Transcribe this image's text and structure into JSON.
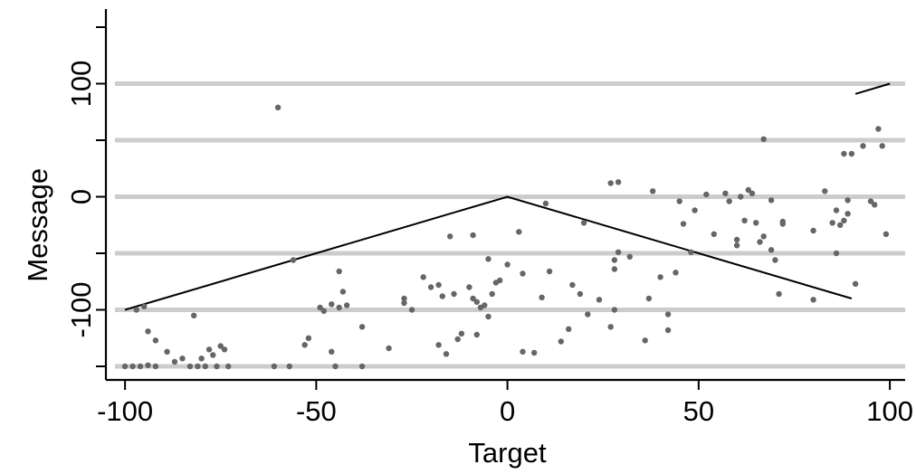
{
  "chart_data": {
    "type": "scatter",
    "title": "",
    "xlabel": "Target",
    "ylabel": "Message",
    "xlim": [
      -105,
      104
    ],
    "ylim": [
      -162,
      166
    ],
    "x_ticks": [
      -100,
      -50,
      0,
      50,
      100
    ],
    "x_tick_labels": [
      "-100",
      "-50",
      "0",
      "50",
      "100"
    ],
    "y_ticks": [
      -100,
      0,
      100
    ],
    "y_tick_labels": [
      "-100",
      "0",
      "100"
    ],
    "y_minor_ticks": [
      -150,
      -50,
      50,
      150
    ],
    "gridlines_y": [
      -150,
      -100,
      -50,
      0,
      50,
      100
    ],
    "grid_color": "#cccccc",
    "point_color": "#666666",
    "line_color": "#000000",
    "lines": [
      {
        "x": [
          -100,
          0,
          90
        ],
        "y": [
          -100,
          0,
          -90
        ]
      },
      {
        "x": [
          91,
          100
        ],
        "y": [
          91,
          100
        ]
      }
    ],
    "points": [
      {
        "x": -100,
        "y": -150
      },
      {
        "x": -98,
        "y": -150
      },
      {
        "x": -96,
        "y": -150
      },
      {
        "x": -94,
        "y": -149
      },
      {
        "x": -92,
        "y": -150
      },
      {
        "x": -97,
        "y": -100
      },
      {
        "x": -95,
        "y": -97
      },
      {
        "x": -94,
        "y": -119
      },
      {
        "x": -92,
        "y": -127
      },
      {
        "x": -89,
        "y": -137
      },
      {
        "x": -87,
        "y": -146
      },
      {
        "x": -85,
        "y": -143
      },
      {
        "x": -83,
        "y": -150
      },
      {
        "x": -82,
        "y": -105
      },
      {
        "x": -81,
        "y": -150
      },
      {
        "x": -80,
        "y": -143
      },
      {
        "x": -78,
        "y": -135
      },
      {
        "x": -77,
        "y": -140
      },
      {
        "x": -76,
        "y": -150
      },
      {
        "x": -75,
        "y": -132
      },
      {
        "x": -74,
        "y": -135
      },
      {
        "x": -73,
        "y": -150
      },
      {
        "x": -79,
        "y": -150
      },
      {
        "x": -61,
        "y": -150
      },
      {
        "x": -60,
        "y": 79
      },
      {
        "x": -57,
        "y": -150
      },
      {
        "x": -56,
        "y": -56
      },
      {
        "x": -53,
        "y": -131
      },
      {
        "x": -52,
        "y": -125
      },
      {
        "x": -49,
        "y": -98
      },
      {
        "x": -48,
        "y": -101
      },
      {
        "x": -46,
        "y": -137
      },
      {
        "x": -46,
        "y": -95
      },
      {
        "x": -45,
        "y": -150
      },
      {
        "x": -44,
        "y": -98
      },
      {
        "x": -44,
        "y": -66
      },
      {
        "x": -43,
        "y": -84
      },
      {
        "x": -42,
        "y": -96
      },
      {
        "x": -38,
        "y": -115
      },
      {
        "x": -38,
        "y": -150
      },
      {
        "x": -31,
        "y": -134
      },
      {
        "x": -27,
        "y": -94
      },
      {
        "x": -27,
        "y": -90
      },
      {
        "x": -25,
        "y": -100
      },
      {
        "x": -22,
        "y": -71
      },
      {
        "x": -20,
        "y": -80
      },
      {
        "x": -18,
        "y": -78
      },
      {
        "x": -18,
        "y": -131
      },
      {
        "x": -17,
        "y": -88
      },
      {
        "x": -16,
        "y": -139
      },
      {
        "x": -15,
        "y": -35
      },
      {
        "x": -14,
        "y": -86
      },
      {
        "x": -13,
        "y": -126
      },
      {
        "x": -12,
        "y": -121
      },
      {
        "x": -10,
        "y": -80
      },
      {
        "x": -9,
        "y": -90
      },
      {
        "x": -9,
        "y": -34
      },
      {
        "x": -8,
        "y": -93
      },
      {
        "x": -7,
        "y": -98
      },
      {
        "x": -6,
        "y": -96
      },
      {
        "x": -5,
        "y": -106
      },
      {
        "x": -5,
        "y": -55
      },
      {
        "x": -4,
        "y": -86
      },
      {
        "x": -3,
        "y": -76
      },
      {
        "x": -2,
        "y": -74
      },
      {
        "x": -8,
        "y": -122
      },
      {
        "x": 0,
        "y": -60
      },
      {
        "x": 3,
        "y": -31
      },
      {
        "x": 4,
        "y": -68
      },
      {
        "x": 4,
        "y": -137
      },
      {
        "x": 7,
        "y": -138
      },
      {
        "x": 9,
        "y": -89
      },
      {
        "x": 10,
        "y": -6
      },
      {
        "x": 11,
        "y": -66
      },
      {
        "x": 14,
        "y": -128
      },
      {
        "x": 16,
        "y": -117
      },
      {
        "x": 17,
        "y": -78
      },
      {
        "x": 19,
        "y": -86
      },
      {
        "x": 20,
        "y": -23
      },
      {
        "x": 21,
        "y": -104
      },
      {
        "x": 24,
        "y": -91
      },
      {
        "x": 27,
        "y": 12
      },
      {
        "x": 27,
        "y": -115
      },
      {
        "x": 28,
        "y": -100
      },
      {
        "x": 28,
        "y": -64
      },
      {
        "x": 28,
        "y": -56
      },
      {
        "x": 29,
        "y": -49
      },
      {
        "x": 29,
        "y": 13
      },
      {
        "x": 32,
        "y": -53
      },
      {
        "x": 36,
        "y": -127
      },
      {
        "x": 37,
        "y": -90
      },
      {
        "x": 38,
        "y": 5
      },
      {
        "x": 40,
        "y": -71
      },
      {
        "x": 42,
        "y": -104
      },
      {
        "x": 42,
        "y": -118
      },
      {
        "x": 44,
        "y": -67
      },
      {
        "x": 45,
        "y": -4
      },
      {
        "x": 46,
        "y": -24
      },
      {
        "x": 48,
        "y": -49
      },
      {
        "x": 49,
        "y": -12
      },
      {
        "x": 52,
        "y": 2
      },
      {
        "x": 54,
        "y": -33
      },
      {
        "x": 57,
        "y": 3
      },
      {
        "x": 58,
        "y": -4
      },
      {
        "x": 60,
        "y": -38
      },
      {
        "x": 60,
        "y": -43
      },
      {
        "x": 61,
        "y": 0
      },
      {
        "x": 62,
        "y": -21
      },
      {
        "x": 63,
        "y": 6
      },
      {
        "x": 64,
        "y": 3
      },
      {
        "x": 65,
        "y": -23
      },
      {
        "x": 66,
        "y": -40
      },
      {
        "x": 67,
        "y": 51
      },
      {
        "x": 67,
        "y": -35
      },
      {
        "x": 69,
        "y": -3
      },
      {
        "x": 69,
        "y": -47
      },
      {
        "x": 70,
        "y": -56
      },
      {
        "x": 71,
        "y": -86
      },
      {
        "x": 72,
        "y": -24
      },
      {
        "x": 72,
        "y": -22
      },
      {
        "x": 80,
        "y": -30
      },
      {
        "x": 80,
        "y": -91
      },
      {
        "x": 83,
        "y": 5
      },
      {
        "x": 85,
        "y": -23
      },
      {
        "x": 86,
        "y": -12
      },
      {
        "x": 86,
        "y": -50
      },
      {
        "x": 87,
        "y": -25
      },
      {
        "x": 88,
        "y": 38
      },
      {
        "x": 88,
        "y": -21
      },
      {
        "x": 89,
        "y": -15
      },
      {
        "x": 89,
        "y": -3
      },
      {
        "x": 90,
        "y": 38
      },
      {
        "x": 91,
        "y": -77
      },
      {
        "x": 93,
        "y": 45
      },
      {
        "x": 95,
        "y": -4
      },
      {
        "x": 96,
        "y": -7
      },
      {
        "x": 97,
        "y": 60
      },
      {
        "x": 98,
        "y": 45
      },
      {
        "x": 99,
        "y": -33
      }
    ]
  }
}
